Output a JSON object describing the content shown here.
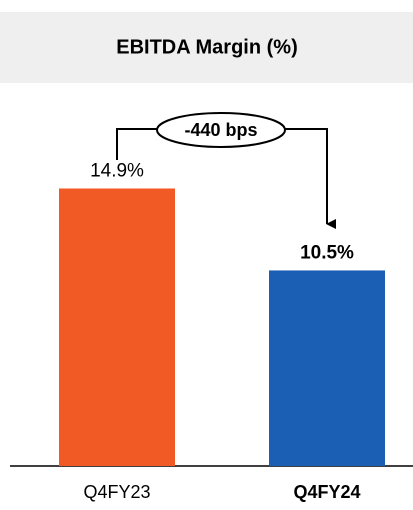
{
  "chart_data": {
    "type": "bar",
    "title": "EBITDA Margin (%)",
    "categories": [
      "Q4FY23",
      "Q4FY24"
    ],
    "values": [
      14.9,
      10.5
    ],
    "value_labels": [
      "14.9%",
      "10.5%"
    ],
    "colors": [
      "#f15a24",
      "#1b5fb5"
    ],
    "ylim": [
      0,
      16
    ],
    "annotation": "-440 bps"
  }
}
